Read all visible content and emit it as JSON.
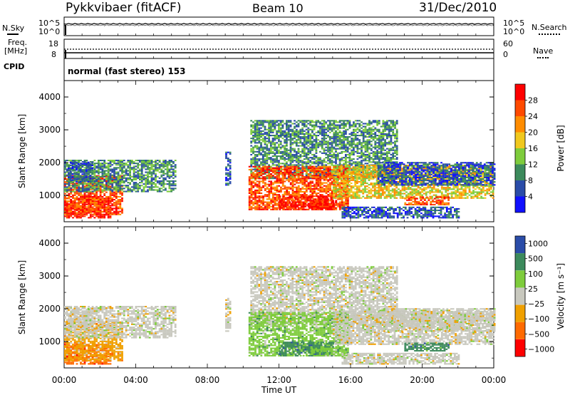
{
  "header": {
    "radar": "Pykkvibaer (fitACF)",
    "beam": "Beam 10",
    "date": "31/Dec/2010"
  },
  "noise_panel": {
    "left_label": "N.Sky",
    "right_label": "N.Search",
    "left_ticks": [
      "10^5",
      "10^0"
    ],
    "right_ticks": [
      "10^5",
      "10^0"
    ]
  },
  "freq_panel": {
    "left_label_1": "Freq.",
    "left_label_2": "[MHz]",
    "left_ticks": [
      "18",
      "8"
    ],
    "right_label": "Nave",
    "right_ticks": [
      "60",
      "0"
    ]
  },
  "cpid": {
    "label": "CPID",
    "text": "normal (fast stereo) 153"
  },
  "colors": {
    "power": [
      "#1010ff",
      "#2a4ca8",
      "#3c8a5c",
      "#7ecc3c",
      "#f0c81e",
      "#ff8c00",
      "#ff4a00",
      "#ff0000"
    ],
    "velocity": [
      "#ff0000",
      "#ff6a00",
      "#f0a000",
      "#c8c8be",
      "#7ecc3c",
      "#3c8a5c",
      "#2a4ca8"
    ]
  },
  "chart_data": [
    {
      "type": "heatmap",
      "name": "power",
      "ylabel": "Slant Range [km]",
      "ylim": [
        200,
        4500
      ],
      "yticks": [
        "1000",
        "2000",
        "3000",
        "4000"
      ],
      "xlim": [
        0,
        24
      ],
      "xticks": [
        "00:00",
        "04:00",
        "08:00",
        "12:00",
        "16:00",
        "20:00",
        "00:00"
      ],
      "colorbar": {
        "label": "Power [dB]",
        "ticks": [
          "4",
          "8",
          "12",
          "16",
          "20",
          "24",
          "28"
        ]
      }
    },
    {
      "type": "heatmap",
      "name": "velocity",
      "ylabel": "Slant Range [km]",
      "xlabel": "Time UT",
      "ylim": [
        200,
        4500
      ],
      "yticks": [
        "1000",
        "2000",
        "3000",
        "4000"
      ],
      "xlim": [
        0,
        24
      ],
      "xticks": [
        "00:00",
        "04:00",
        "08:00",
        "12:00",
        "16:00",
        "20:00",
        "00:00"
      ],
      "colorbar": {
        "label": "Velocity [m s⁻¹]",
        "ticks": [
          "1000",
          "500",
          "100",
          "25",
          "−25",
          "−100",
          "−500",
          "−1000"
        ]
      }
    }
  ]
}
